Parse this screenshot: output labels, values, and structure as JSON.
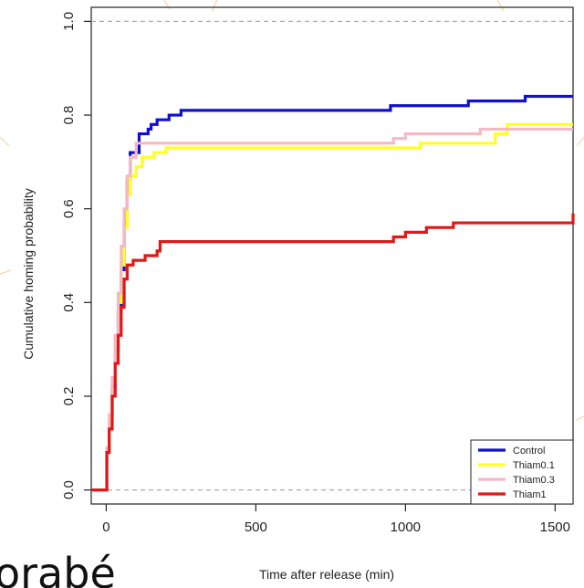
{
  "chart_data": {
    "type": "line",
    "step": true,
    "xlabel": "Time after release (min)",
    "ylabel": "Cumulative homing probability",
    "xlim": [
      -50,
      1560
    ],
    "ylim": [
      -0.03,
      1.03
    ],
    "xticks": [
      0,
      500,
      1000,
      1500
    ],
    "yticks": [
      0.0,
      0.2,
      0.4,
      0.6,
      0.8,
      1.0
    ],
    "xtick_labels": [
      "0",
      "500",
      "1000",
      "1500"
    ],
    "ytick_labels": [
      "0.0",
      "0.2",
      "0.4",
      "0.6",
      "0.8",
      "1.0"
    ],
    "reference_lines": [
      0.0,
      1.0
    ],
    "grid": false,
    "legend_position": "bottom-right",
    "series": [
      {
        "name": "Control",
        "color": "#1010d0",
        "points": [
          [
            -50,
            0
          ],
          [
            0,
            0
          ],
          [
            2,
            0.08
          ],
          [
            10,
            0.15
          ],
          [
            20,
            0.22
          ],
          [
            30,
            0.3
          ],
          [
            40,
            0.38
          ],
          [
            50,
            0.47
          ],
          [
            60,
            0.57
          ],
          [
            70,
            0.66
          ],
          [
            80,
            0.72
          ],
          [
            100,
            0.72
          ],
          [
            110,
            0.76
          ],
          [
            140,
            0.77
          ],
          [
            150,
            0.78
          ],
          [
            170,
            0.79
          ],
          [
            200,
            0.79
          ],
          [
            210,
            0.8
          ],
          [
            240,
            0.8
          ],
          [
            250,
            0.81
          ],
          [
            940,
            0.81
          ],
          [
            950,
            0.82
          ],
          [
            1200,
            0.82
          ],
          [
            1210,
            0.83
          ],
          [
            1380,
            0.83
          ],
          [
            1400,
            0.84
          ],
          [
            1560,
            0.84
          ]
        ]
      },
      {
        "name": "Thiam0.1",
        "color": "#ffff22",
        "points": [
          [
            -50,
            0
          ],
          [
            0,
            0
          ],
          [
            2,
            0.08
          ],
          [
            10,
            0.15
          ],
          [
            20,
            0.23
          ],
          [
            30,
            0.32
          ],
          [
            40,
            0.4
          ],
          [
            50,
            0.48
          ],
          [
            60,
            0.56
          ],
          [
            70,
            0.63
          ],
          [
            80,
            0.67
          ],
          [
            100,
            0.69
          ],
          [
            120,
            0.71
          ],
          [
            160,
            0.72
          ],
          [
            200,
            0.73
          ],
          [
            1000,
            0.73
          ],
          [
            1050,
            0.74
          ],
          [
            1250,
            0.74
          ],
          [
            1300,
            0.76
          ],
          [
            1340,
            0.78
          ],
          [
            1560,
            0.78
          ]
        ]
      },
      {
        "name": "Thiam0.3",
        "color": "#f5b8c4",
        "points": [
          [
            -50,
            0
          ],
          [
            0,
            0
          ],
          [
            2,
            0.09
          ],
          [
            10,
            0.16
          ],
          [
            20,
            0.24
          ],
          [
            30,
            0.33
          ],
          [
            40,
            0.42
          ],
          [
            50,
            0.52
          ],
          [
            60,
            0.6
          ],
          [
            70,
            0.67
          ],
          [
            80,
            0.71
          ],
          [
            100,
            0.74
          ],
          [
            950,
            0.74
          ],
          [
            960,
            0.75
          ],
          [
            1000,
            0.76
          ],
          [
            1200,
            0.76
          ],
          [
            1250,
            0.77
          ],
          [
            1560,
            0.77
          ]
        ]
      },
      {
        "name": "Thiam1",
        "color": "#e01818",
        "points": [
          [
            -50,
            0
          ],
          [
            0,
            0
          ],
          [
            2,
            0.08
          ],
          [
            10,
            0.13
          ],
          [
            20,
            0.2
          ],
          [
            30,
            0.27
          ],
          [
            40,
            0.33
          ],
          [
            50,
            0.39
          ],
          [
            60,
            0.45
          ],
          [
            70,
            0.48
          ],
          [
            90,
            0.49
          ],
          [
            120,
            0.49
          ],
          [
            130,
            0.5
          ],
          [
            170,
            0.51
          ],
          [
            180,
            0.53
          ],
          [
            950,
            0.53
          ],
          [
            960,
            0.54
          ],
          [
            1000,
            0.55
          ],
          [
            1050,
            0.55
          ],
          [
            1070,
            0.56
          ],
          [
            1150,
            0.56
          ],
          [
            1160,
            0.57
          ],
          [
            1550,
            0.57
          ],
          [
            1560,
            0.59
          ]
        ]
      }
    ]
  },
  "corner_text": "orabé"
}
